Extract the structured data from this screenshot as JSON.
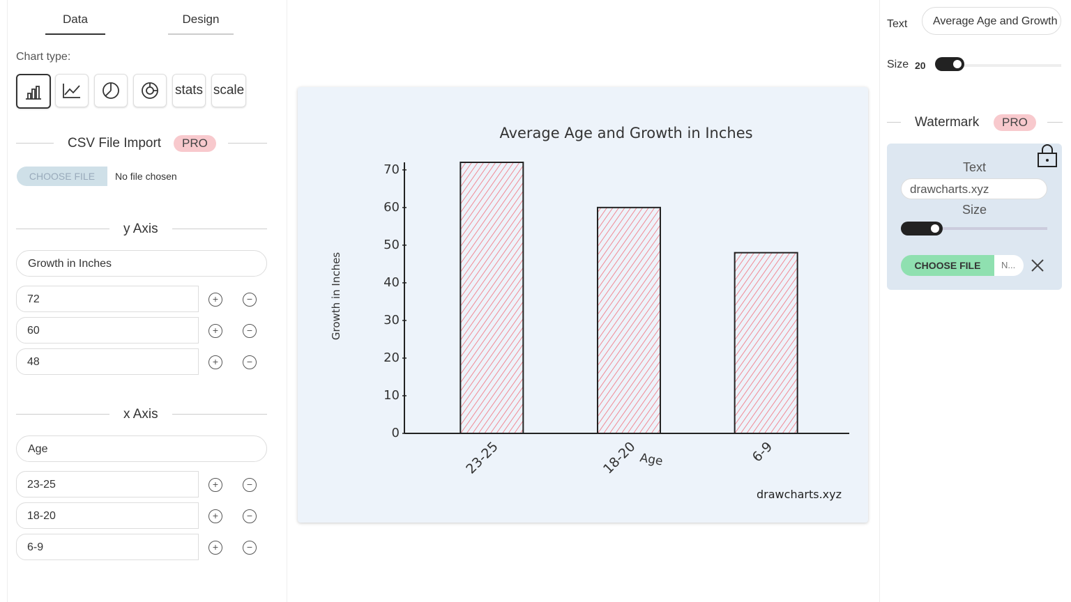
{
  "left_panel": {
    "tabs": [
      "Data",
      "Design"
    ],
    "chart_type_label": "Chart type:",
    "chart_type_buttons": [
      "stats",
      "scale"
    ],
    "csv_import": {
      "title": "CSV File Import",
      "badge": "PRO",
      "button": "CHOOSE FILE",
      "status": "No file chosen"
    },
    "y_axis_section": "y Axis",
    "x_axis_section": "x Axis"
  },
  "chart_data": {
    "type": "bar",
    "title": "Average Age and Growth in Inches",
    "x_label": "Age",
    "y_label": "Growth in Inches",
    "categories": [
      "23-25",
      "18-20",
      "6-9"
    ],
    "values": [
      72,
      60,
      48
    ],
    "color": "#f08a95",
    "ylim": [
      0,
      72
    ],
    "yticks": [
      0,
      10,
      20,
      30,
      40,
      50,
      60,
      70
    ],
    "watermark": "drawcharts.xyz"
  },
  "right_panel": {
    "text_label": "Text",
    "size_label": "Size",
    "size_value": 20,
    "watermark": {
      "title": "Watermark",
      "badge": "PRO",
      "text_label": "Text",
      "size_label": "Size",
      "button": "CHOOSE FILE",
      "file_status": "N..."
    }
  }
}
